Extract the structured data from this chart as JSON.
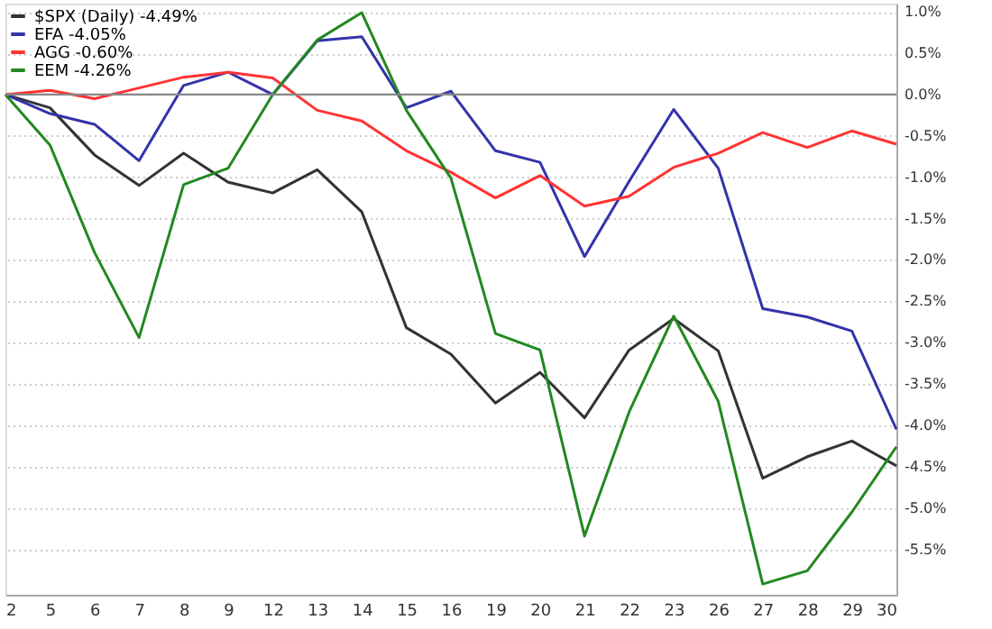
{
  "chart_data": {
    "type": "line",
    "categories": [
      "2",
      "5",
      "6",
      "7",
      "8",
      "9",
      "12",
      "13",
      "14",
      "15",
      "16",
      "19",
      "20",
      "21",
      "22",
      "23",
      "26",
      "27",
      "28",
      "29",
      "30"
    ],
    "series": [
      {
        "name": "$SPX (Daily) -4.49%",
        "color": "#333333",
        "values": [
          0,
          -0.16,
          -0.73,
          -1.1,
          -0.71,
          -1.06,
          -1.19,
          -0.91,
          -1.42,
          -2.82,
          -3.14,
          -3.73,
          -3.36,
          -3.91,
          -3.09,
          -2.71,
          -3.1,
          -4.64,
          -4.38,
          -4.19,
          -4.49
        ]
      },
      {
        "name": "EFA -4.05%",
        "color": "#3333aa",
        "values": [
          0,
          -0.23,
          -0.36,
          -0.8,
          0.11,
          0.27,
          0,
          0.65,
          0.7,
          -0.16,
          0.04,
          -0.68,
          -0.82,
          -1.96,
          -1.05,
          -0.18,
          -0.89,
          -2.59,
          -2.69,
          -2.86,
          -4.05
        ]
      },
      {
        "name": "AGG -0.60%",
        "color": "#ff3333",
        "values": [
          0,
          0.05,
          -0.05,
          0.08,
          0.21,
          0.27,
          0.2,
          -0.19,
          -0.32,
          -0.68,
          -0.94,
          -1.25,
          -0.98,
          -1.35,
          -1.23,
          -0.88,
          -0.71,
          -0.46,
          -0.64,
          -0.44,
          -0.6
        ]
      },
      {
        "name": "EEM -4.26%",
        "color": "#228822",
        "values": [
          0,
          -0.61,
          -1.91,
          -2.94,
          -1.09,
          -0.89,
          0,
          0.66,
          0.99,
          -0.19,
          -1.01,
          -2.89,
          -3.09,
          -5.34,
          -3.84,
          -2.68,
          -3.71,
          -5.92,
          -5.76,
          -5.05,
          -4.26
        ]
      }
    ],
    "ylim": [
      -6.05,
      1.1
    ],
    "yticks": [
      {
        "value": -5.5,
        "label": "-5.5%"
      },
      {
        "value": -5,
        "label": "-5.0%"
      },
      {
        "value": -4.5,
        "label": "-4.5%"
      },
      {
        "value": -4,
        "label": "-4.0%"
      },
      {
        "value": -3.5,
        "label": "-3.5%"
      },
      {
        "value": -3,
        "label": "-3.0%"
      },
      {
        "value": -2.5,
        "label": "-2.5%"
      },
      {
        "value": -2,
        "label": "-2.0%"
      },
      {
        "value": -1.5,
        "label": "-1.5%"
      },
      {
        "value": -1,
        "label": "-1.0%"
      },
      {
        "value": -0.5,
        "label": "-0.5%"
      },
      {
        "value": 0,
        "label": "0.0%"
      },
      {
        "value": 0.5,
        "label": "0.5%"
      },
      {
        "value": 1,
        "label": "1.0%"
      }
    ],
    "ref_lines": [
      {
        "axis": "y",
        "value": 0,
        "color": "#888888"
      }
    ],
    "grid": "y",
    "legend": "top left",
    "marker": "none",
    "line_style": "solid"
  }
}
